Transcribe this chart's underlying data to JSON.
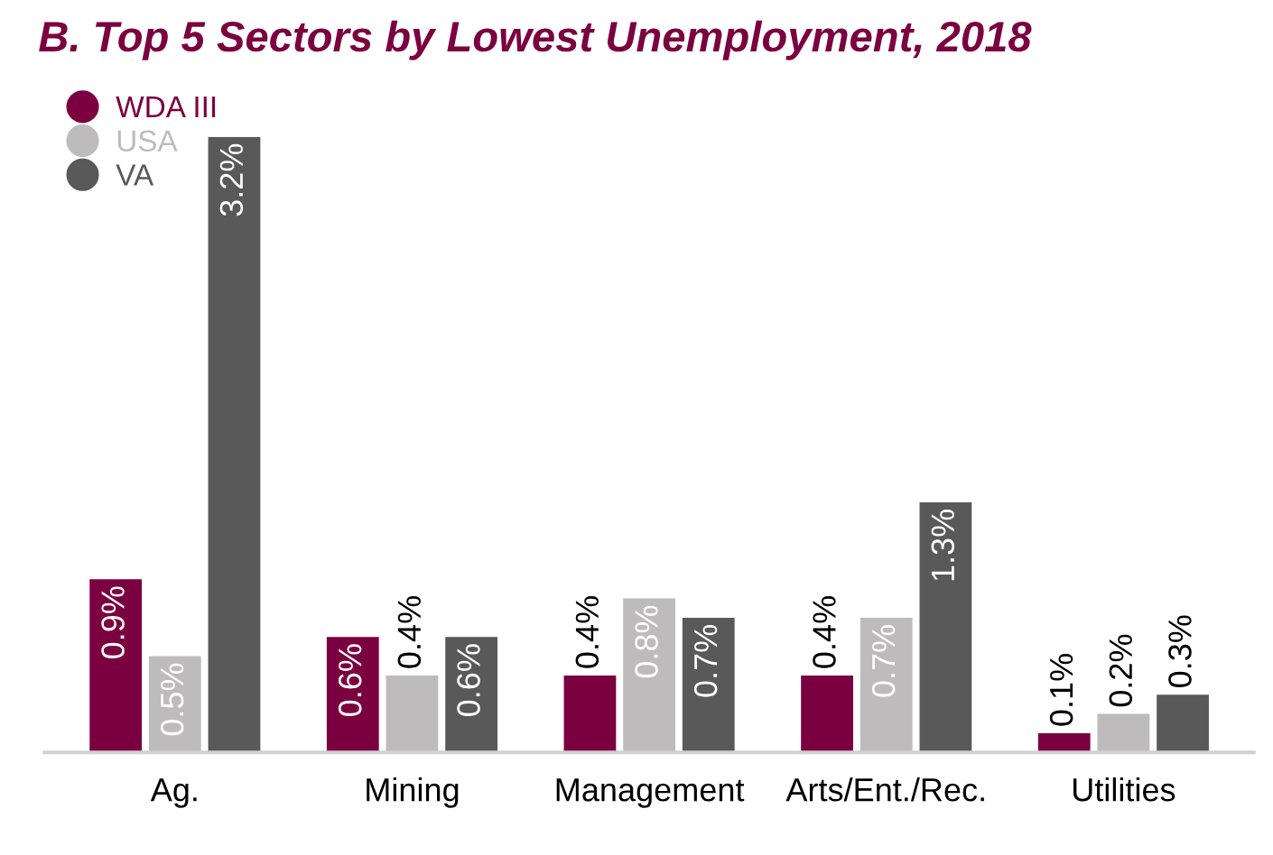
{
  "chart_data": {
    "type": "bar",
    "title": "B. Top 5 Sectors by Lowest Unemployment, 2018",
    "categories": [
      "Ag.",
      "Mining",
      "Management",
      "Arts/Ent./Rec.",
      "Utilities"
    ],
    "series": [
      {
        "name": "WDA III",
        "color": "#7b0040",
        "values": [
          0.9,
          0.6,
          0.4,
          0.4,
          0.1
        ],
        "value_labels": [
          "0.9%",
          "0.6%",
          "0.4%",
          "0.4%",
          "0.1%"
        ]
      },
      {
        "name": "USA",
        "color": "#bdbbbc",
        "values": [
          0.5,
          0.4,
          0.8,
          0.7,
          0.2
        ],
        "value_labels": [
          "0.5%",
          "0.4%",
          "0.8%",
          "0.7%",
          "0.2%"
        ]
      },
      {
        "name": "VA",
        "color": "#595959",
        "values": [
          3.2,
          0.6,
          0.7,
          1.3,
          0.3
        ],
        "value_labels": [
          "3.2%",
          "0.6%",
          "0.7%",
          "1.3%",
          "0.3%"
        ]
      }
    ],
    "legend": "top left",
    "grid": false
  }
}
